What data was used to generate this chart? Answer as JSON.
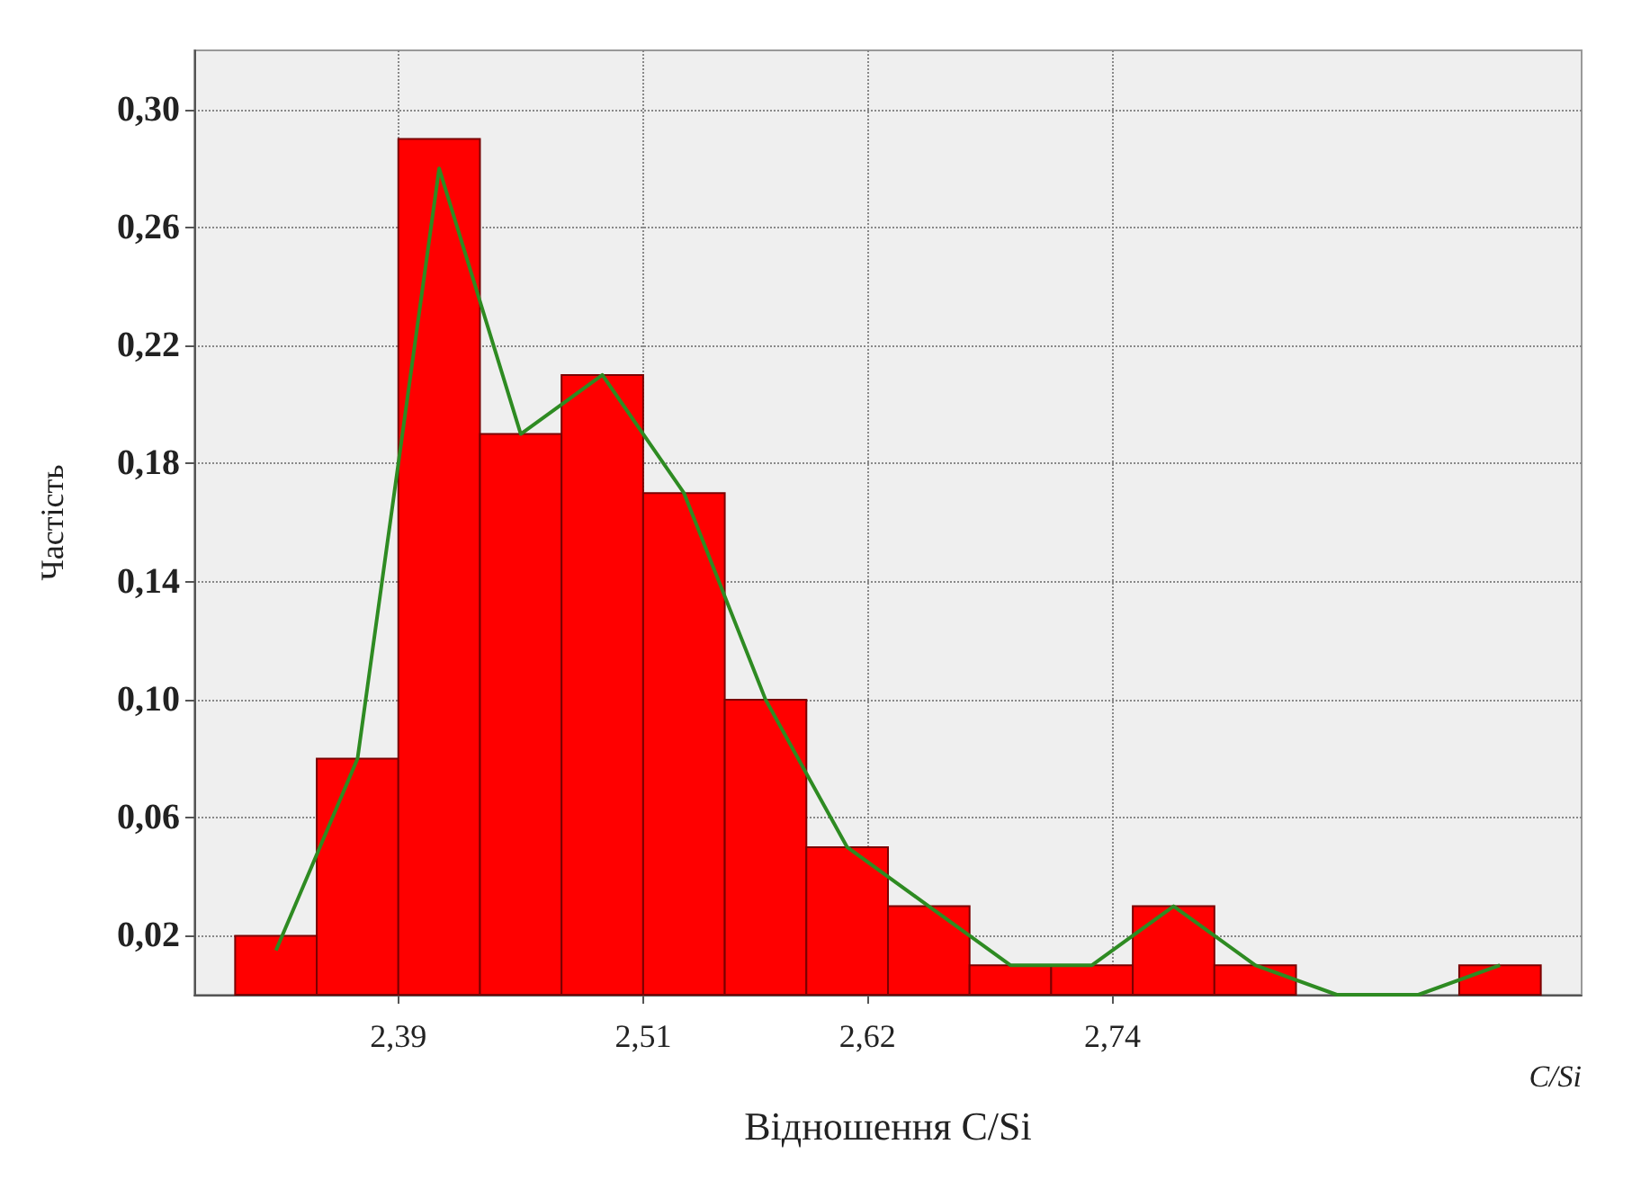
{
  "chart_data": {
    "type": "histogram",
    "xlabel": "Відношення C/Si",
    "ylabel": "Частість",
    "annotations": [
      "C/Si"
    ],
    "bins": [
      2.31,
      2.35,
      2.39,
      2.43,
      2.47,
      2.51,
      2.55,
      2.59,
      2.63,
      2.67,
      2.71,
      2.75,
      2.79,
      2.83,
      2.87,
      2.91,
      2.95
    ],
    "series": [
      {
        "color": "#ff0000",
        "values": [
          0.02,
          0.08,
          0.29,
          0.19,
          0.21,
          0.17,
          0.1,
          0.05,
          0.03,
          0.01,
          0.01,
          0.03,
          0.01,
          0,
          0,
          0.01
        ]
      },
      {
        "type": "line",
        "color": "#2e8b22",
        "x": [
          2.33,
          2.37,
          2.41,
          2.45,
          2.49,
          2.53,
          2.57,
          2.61,
          2.65,
          2.69,
          2.73,
          2.77,
          2.81,
          2.85,
          2.89,
          2.93
        ],
        "values": [
          0.015,
          0.08,
          0.28,
          0.19,
          0.21,
          0.17,
          0.1,
          0.05,
          0.03,
          0.01,
          0.01,
          0.03,
          0.01,
          0,
          0,
          0.01
        ]
      }
    ],
    "xlim": [
      2.29,
      2.97
    ],
    "xticks": [
      {
        "value": 2.39,
        "label": "2,39"
      },
      {
        "value": 2.51,
        "label": "2,51"
      },
      {
        "value": 2.62,
        "label": "2,62"
      },
      {
        "value": 2.74,
        "label": "2,74"
      }
    ],
    "ylim": [
      0,
      0.32
    ],
    "yticks": [
      {
        "value": 0.02,
        "label": "0,02"
      },
      {
        "value": 0.06,
        "label": "0,06"
      },
      {
        "value": 0.1,
        "label": "0,10"
      },
      {
        "value": 0.14,
        "label": "0,14"
      },
      {
        "value": 0.18,
        "label": "0,18"
      },
      {
        "value": 0.22,
        "label": "0,22"
      },
      {
        "value": 0.26,
        "label": "0,26"
      },
      {
        "value": 0.3,
        "label": "0,30"
      }
    ],
    "grid": true,
    "marker": "none",
    "line_style": "solid"
  }
}
